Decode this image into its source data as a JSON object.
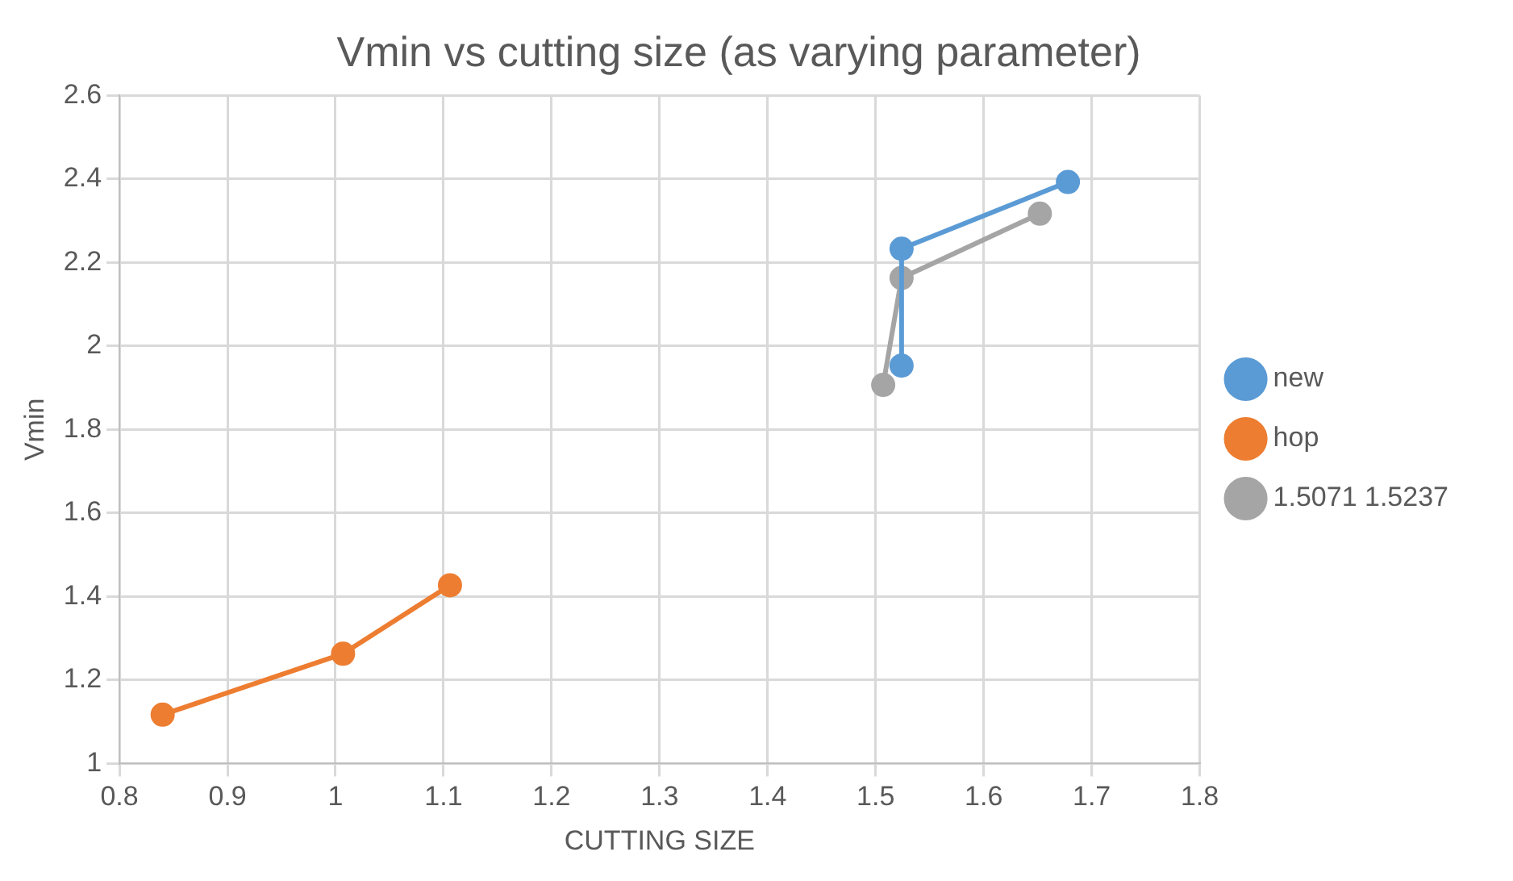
{
  "chart_data": {
    "type": "line",
    "title": "Vmin vs cutting size (as varying parameter)",
    "xlabel": "CUTTING SIZE",
    "ylabel": "Vmin",
    "series": [
      {
        "name": "new",
        "color": "#5b9bd5",
        "x": [
          1.524,
          1.524,
          1.678
        ],
        "values": [
          1.953,
          2.233,
          2.393
        ]
      },
      {
        "name": "hop",
        "color": "#ed7d31",
        "x": [
          0.84,
          1.007,
          1.106
        ],
        "values": [
          1.117,
          1.263,
          1.427
        ]
      },
      {
        "name": "1.5071 1.5237",
        "color": "#a5a5a5",
        "x": [
          1.507,
          1.524,
          1.652
        ],
        "values": [
          1.907,
          2.163,
          2.317
        ]
      }
    ],
    "xlim": [
      0.8,
      1.8
    ],
    "xticks": [
      0.8,
      0.9,
      1,
      1.1,
      1.2,
      1.3,
      1.4,
      1.5,
      1.6,
      1.7,
      1.8
    ],
    "ylim": [
      1,
      2.6
    ],
    "yticks": [
      1,
      1.2,
      1.4,
      1.6,
      1.8,
      2,
      2.2,
      2.4,
      2.6
    ],
    "grid": true,
    "legend": "right",
    "marker": "circle",
    "line_style": "solid"
  }
}
